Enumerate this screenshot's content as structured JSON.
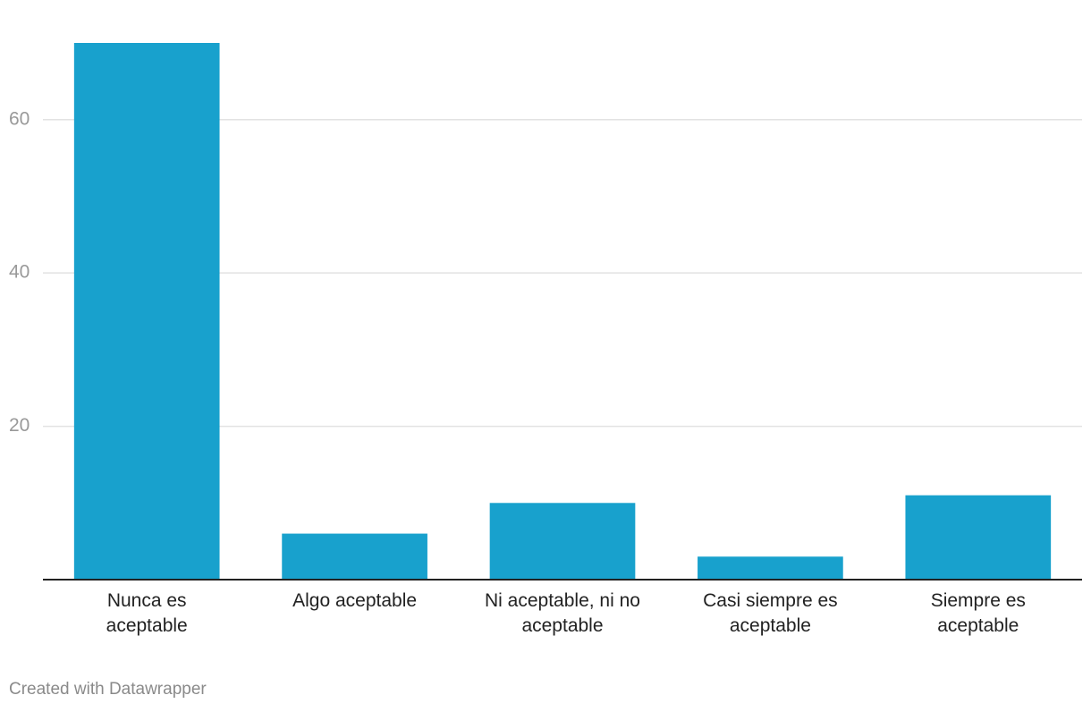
{
  "chart_data": {
    "type": "bar",
    "categories": [
      "Nunca es aceptable",
      "Algo aceptable",
      "Ni aceptable, ni no aceptable",
      "Casi siempre es aceptable",
      "Siempre es aceptable"
    ],
    "values": [
      70,
      6,
      10,
      3,
      11
    ],
    "color": "#18a1cd",
    "ylim": [
      0,
      70
    ],
    "yticks": [
      20,
      40,
      60
    ],
    "grid": true,
    "footer": "Created with Datawrapper"
  }
}
